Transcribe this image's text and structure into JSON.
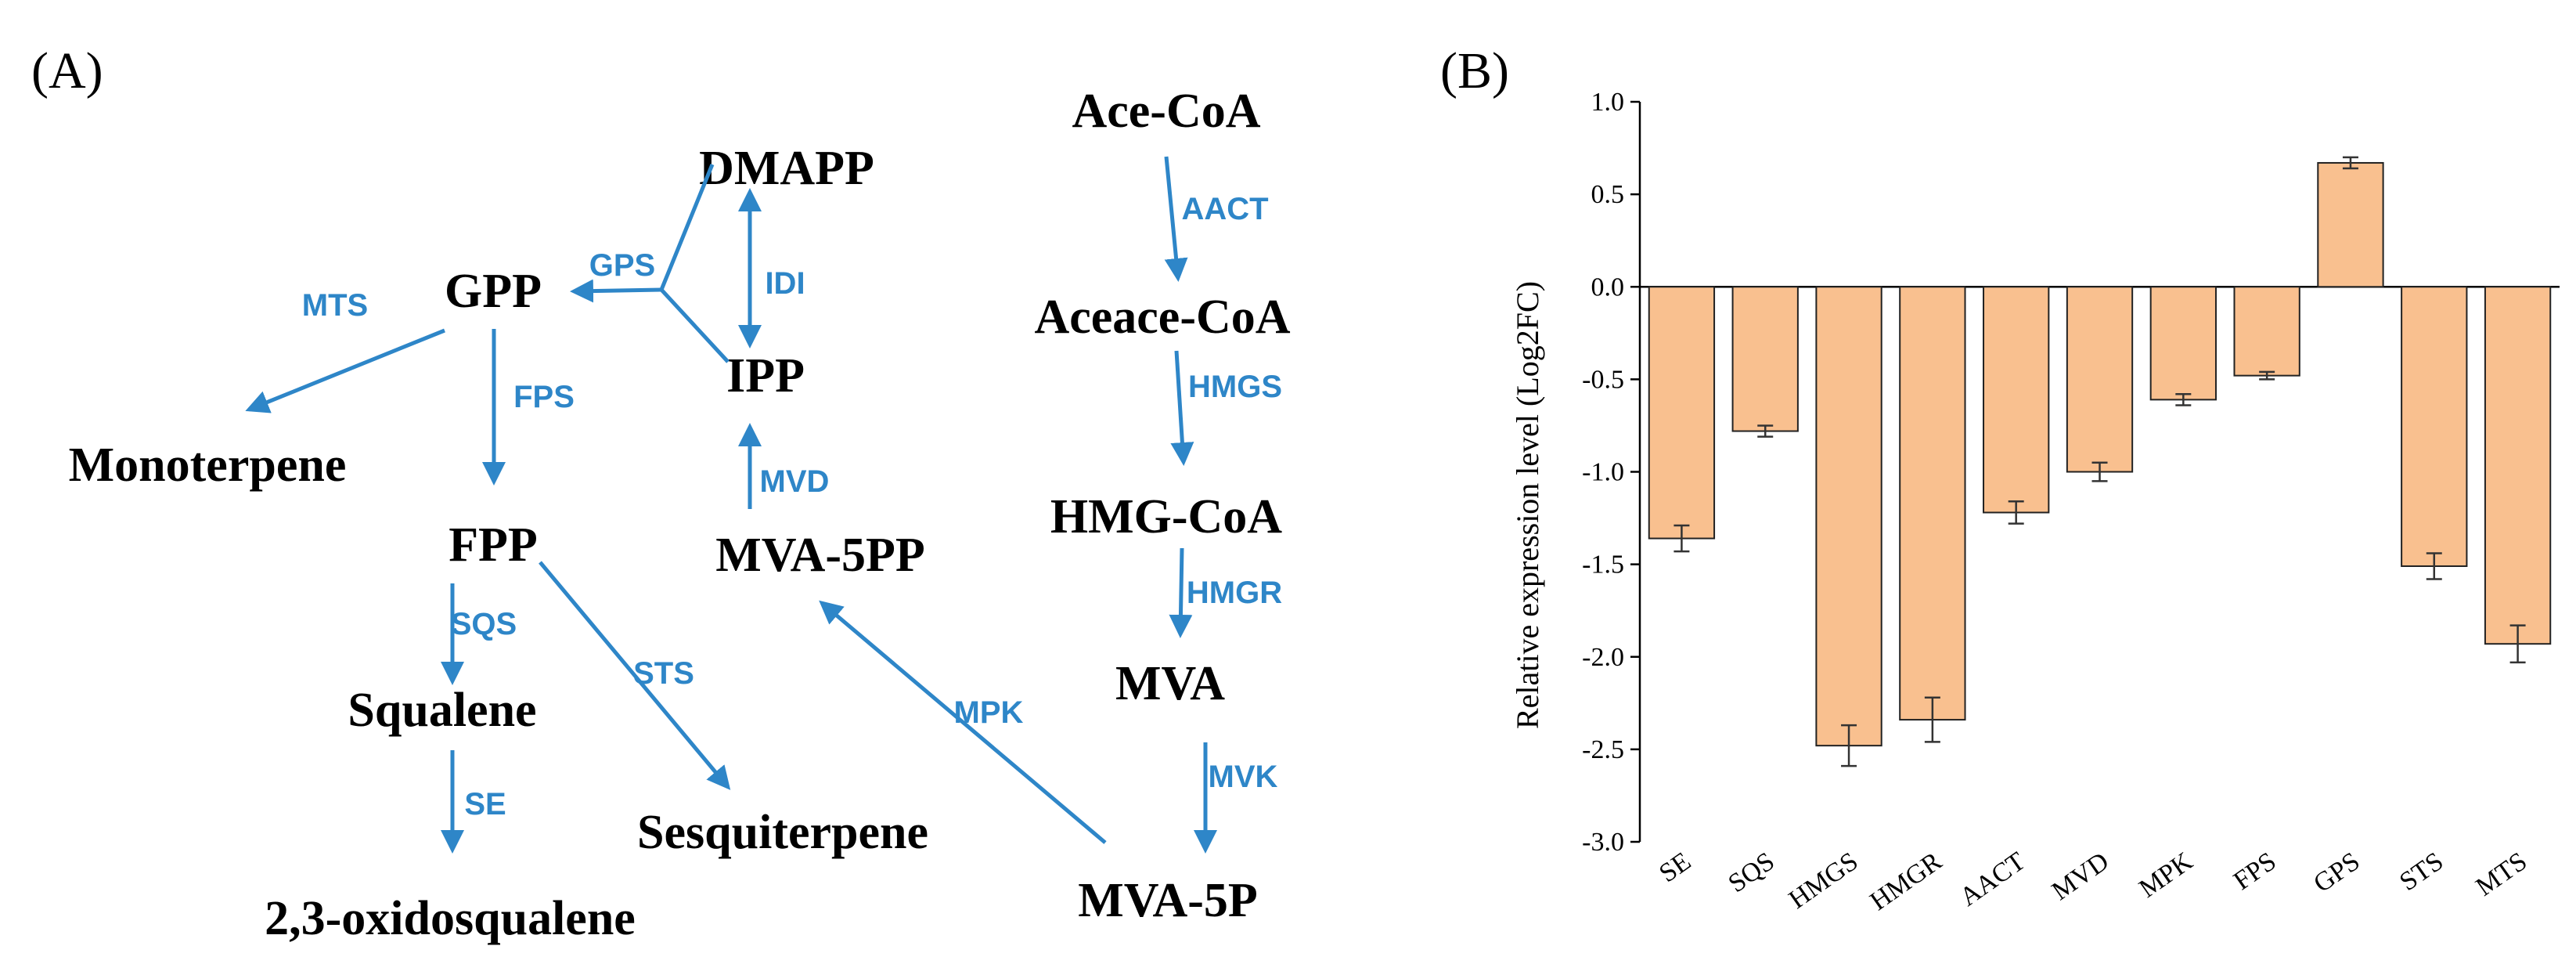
{
  "panel_a": {
    "label": "(A)",
    "metabolites": {
      "dmapp": "DMAPP",
      "gpp": "GPP",
      "ipp": "IPP",
      "monoterpene": "Monoterpene",
      "fpp": "FPP",
      "mva5pp": "MVA-5PP",
      "squalene": "Squalene",
      "sesquiterpene": "Sesquiterpene",
      "oxidosqualene": "2,3-oxidosqualene",
      "acecoa": "Ace-CoA",
      "aceacecoa": "Aceace-CoA",
      "hmgcoa": "HMG-CoA",
      "mva": "MVA",
      "mva5p": "MVA-5P"
    },
    "enzymes": {
      "gps": "GPS",
      "idi": "IDI",
      "mts": "MTS",
      "fps": "FPS",
      "mvd": "MVD",
      "sqs": "SQS",
      "sts": "STS",
      "mpk": "MPK",
      "se": "SE",
      "aact": "AACT",
      "hmgs": "HMGS",
      "hmgr": "HMGR",
      "mvk": "MVK"
    },
    "colors": {
      "enzyme_arrow": "#2e86c8"
    }
  },
  "panel_b": {
    "label": "(B)"
  },
  "chart_data": {
    "type": "bar",
    "title": "",
    "xlabel": "",
    "ylabel": "Relative expression level (Log2FC)",
    "ylim": [
      -3.0,
      1.0
    ],
    "yticks": [
      1.0,
      0.5,
      0.0,
      -0.5,
      -1.0,
      -1.5,
      -2.0,
      -2.5,
      -3.0
    ],
    "ytick_labels": [
      "1.0",
      "0.5",
      "0.0",
      "-0.5",
      "-1.0",
      "-1.5",
      "-2.0",
      "-2.5",
      "-3.0"
    ],
    "categories": [
      "SE",
      "SQS",
      "HMGS",
      "HMGR",
      "AACT",
      "MVD",
      "MPK",
      "FPS",
      "GPS",
      "STS",
      "MTS"
    ],
    "values": [
      -1.36,
      -0.78,
      -2.48,
      -2.34,
      -1.22,
      -1.0,
      -0.61,
      -0.48,
      0.67,
      -1.51,
      -1.93
    ],
    "errors": [
      0.07,
      0.03,
      0.11,
      0.12,
      0.06,
      0.05,
      0.03,
      0.02,
      0.03,
      0.07,
      0.1
    ],
    "bar_color": "#f9c08f",
    "grid": false,
    "legend": "none"
  }
}
